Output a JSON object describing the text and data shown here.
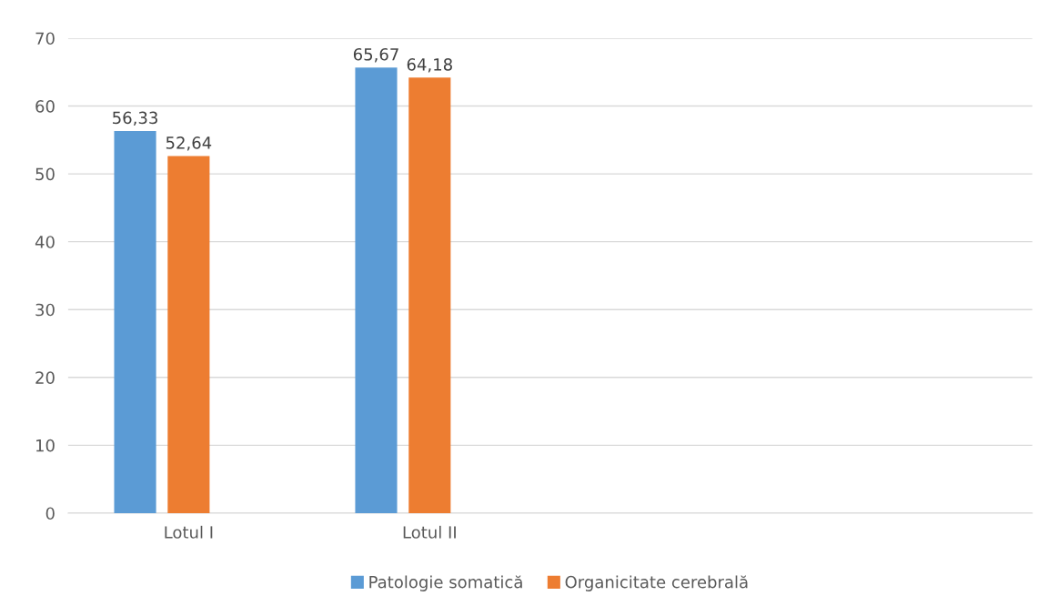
{
  "chart_data": {
    "type": "bar",
    "categories": [
      "Lotul I",
      "Lotul II",
      null,
      null
    ],
    "series": [
      {
        "name": "Patologie somatică",
        "color": "#5b9bd5",
        "values": [
          56.33,
          65.67,
          null,
          null
        ],
        "value_labels": [
          "56,33",
          "65,67",
          null,
          null
        ]
      },
      {
        "name": "Organicitate cerebrală",
        "color": "#ed7d31",
        "values": [
          52.64,
          64.18,
          null,
          null
        ],
        "value_labels": [
          "52,64",
          "64,18",
          null,
          null
        ]
      }
    ],
    "ylim": [
      0,
      70
    ],
    "yticks": [
      0,
      10,
      20,
      30,
      40,
      50,
      60,
      70
    ],
    "grid": "y",
    "legend": "bottom"
  }
}
